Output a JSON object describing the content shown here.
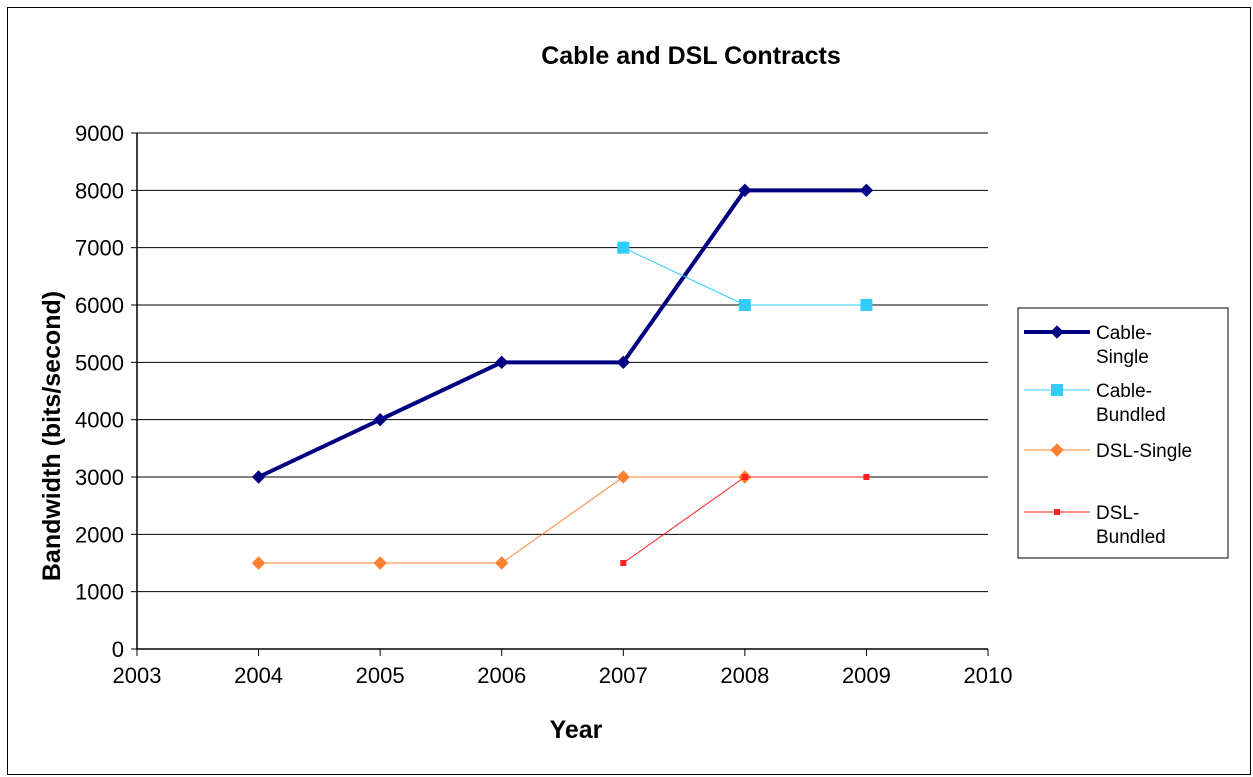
{
  "chart_data": {
    "type": "line",
    "title": "Cable and DSL Contracts",
    "xlabel": "Year",
    "ylabel": "Bandwidth (bits/second)",
    "xlim": [
      2003,
      2010
    ],
    "ylim": [
      0,
      9000
    ],
    "x_ticks": [
      2003,
      2004,
      2005,
      2006,
      2007,
      2008,
      2009,
      2010
    ],
    "y_ticks": [
      0,
      1000,
      2000,
      3000,
      4000,
      5000,
      6000,
      7000,
      8000,
      9000
    ],
    "x_tick_labels": [
      "2003",
      "2004",
      "2005",
      "2006",
      "2007",
      "2008",
      "2009",
      "2010"
    ],
    "y_tick_labels": [
      "0",
      "1000",
      "2000",
      "3000",
      "4000",
      "5000",
      "6000",
      "7000",
      "8000",
      "9000"
    ],
    "grid": "horizontal",
    "legend_position": "right",
    "series": [
      {
        "name": "Cable-Single",
        "legend_lines": [
          "Cable-",
          "Single"
        ],
        "color": "#000080",
        "marker": "diamond",
        "points": [
          [
            2004,
            3000
          ],
          [
            2005,
            4000
          ],
          [
            2006,
            5000
          ],
          [
            2007,
            5000
          ],
          [
            2008,
            8000
          ],
          [
            2009,
            8000
          ]
        ]
      },
      {
        "name": "Cable-Bundled",
        "legend_lines": [
          "Cable-",
          "Bundled"
        ],
        "color": "#33CCFF",
        "marker": "square",
        "points": [
          [
            2007,
            7000
          ],
          [
            2008,
            6000
          ],
          [
            2009,
            6000
          ]
        ]
      },
      {
        "name": "DSL-Single",
        "legend_lines": [
          "DSL-Single"
        ],
        "color": "#FF8033",
        "marker": "diamond",
        "points": [
          [
            2004,
            1500
          ],
          [
            2005,
            1500
          ],
          [
            2006,
            1500
          ],
          [
            2007,
            3000
          ],
          [
            2008,
            3000
          ]
        ]
      },
      {
        "name": "DSL-Bundled",
        "legend_lines": [
          "DSL-",
          "Bundled"
        ],
        "color": "#FF2020",
        "marker": "smallsquare",
        "points": [
          [
            2007,
            1500
          ],
          [
            2008,
            3000
          ],
          [
            2009,
            3000
          ]
        ]
      }
    ]
  }
}
